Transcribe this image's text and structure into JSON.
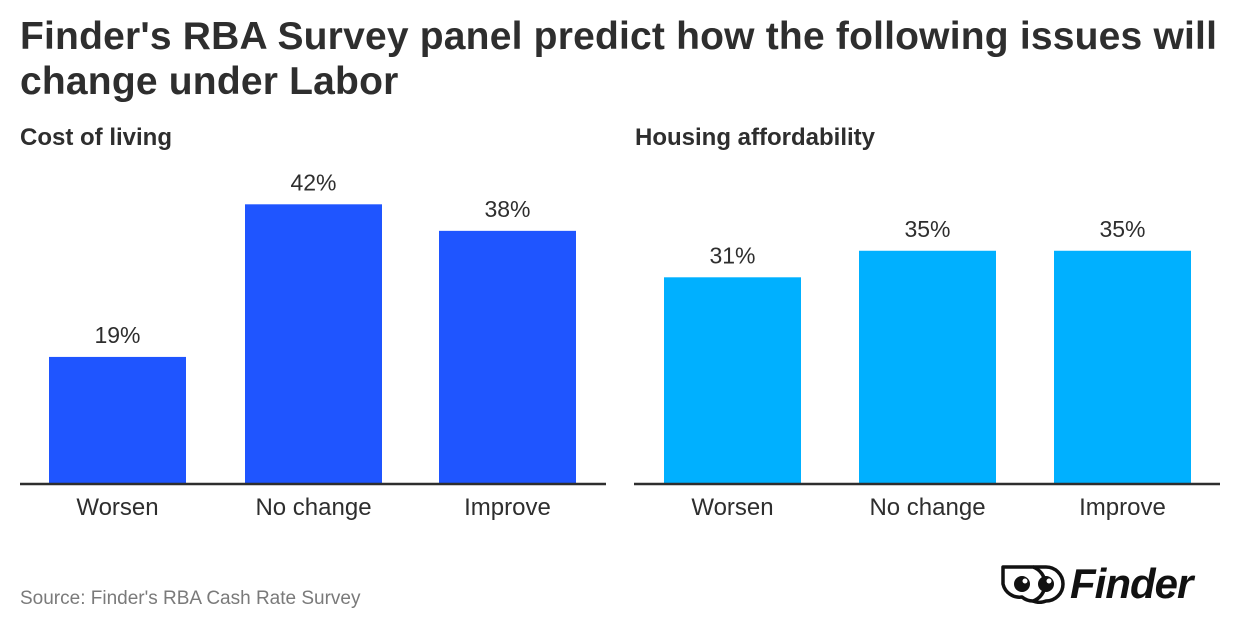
{
  "title": "Finder's RBA Survey panel predict how the following issues will change under Labor",
  "source": "Source: Finder's RBA Cash Rate Survey",
  "brand": {
    "name": "Finder",
    "logo_icon": "eyes-icon"
  },
  "colors": {
    "cost_of_living": "#1f55ff",
    "housing": "#00b0ff",
    "axis": "#2e2e2e",
    "text": "#2e2e2e",
    "source_text": "#7a7a7a"
  },
  "chart_data": [
    {
      "type": "bar",
      "title": "Cost of living",
      "categories": [
        "Worsen",
        "No change",
        "Improve"
      ],
      "values": [
        19,
        42,
        38
      ],
      "labels": [
        "19%",
        "42%",
        "38%"
      ],
      "xlabel": "",
      "ylabel": "",
      "ylim": [
        0,
        42.8
      ],
      "grid": false,
      "color": "#1f55ff"
    },
    {
      "type": "bar",
      "title": "Housing affordability",
      "categories": [
        "Worsen",
        "No change",
        "Improve"
      ],
      "values": [
        31,
        35,
        35
      ],
      "labels": [
        "31%",
        "35%",
        "35%"
      ],
      "xlabel": "",
      "ylabel": "",
      "ylim": [
        0,
        42.8
      ],
      "grid": false,
      "color": "#00b0ff"
    }
  ]
}
